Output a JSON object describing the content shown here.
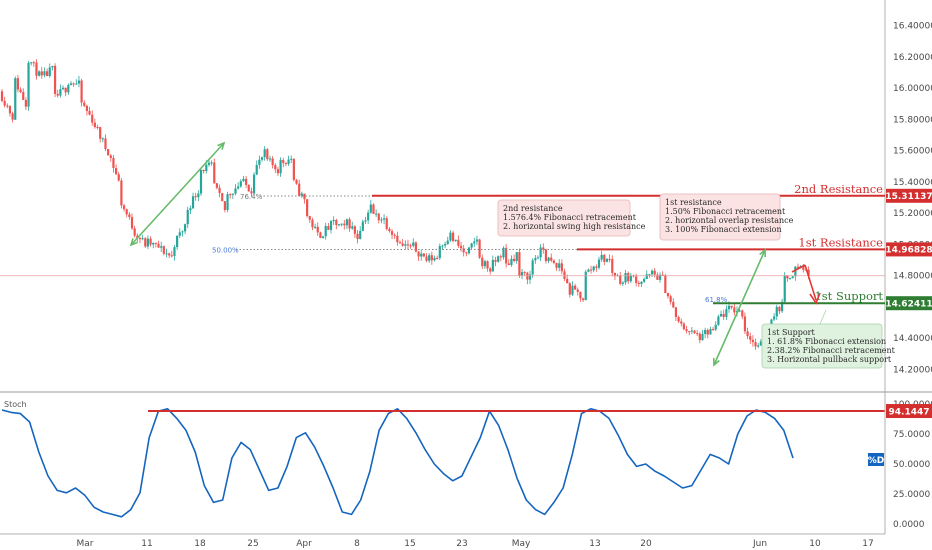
{
  "chart_data": [
    {
      "type": "candlestick",
      "ylim": [
        14.12,
        16.5
      ],
      "y_ticks": [
        "16.40000",
        "16.20000",
        "16.00000",
        "15.80000",
        "15.60000",
        "15.40000",
        "15.20000",
        "15.00000",
        "14.80000",
        "14.60000",
        "14.40000",
        "14.20000"
      ],
      "x_ticks": [
        "Mar",
        "11",
        "18",
        "25",
        "Apr",
        "8",
        "15",
        "23",
        "May",
        "13",
        "20",
        "Jun",
        "10",
        "17"
      ],
      "price_path": [
        [
          15.98,
          15.82
        ],
        [
          16.08,
          15.9
        ],
        [
          16.22,
          16.08
        ],
        [
          16.05,
          16.12
        ],
        [
          15.92,
          16.0
        ],
        [
          16.05,
          16.02
        ],
        [
          15.93,
          15.8
        ],
        [
          15.8,
          15.62
        ],
        [
          15.65,
          15.4
        ],
        [
          15.3,
          15.12
        ],
        [
          15.1,
          15.0
        ],
        [
          15.02,
          14.98
        ],
        [
          14.98,
          14.92
        ],
        [
          14.98,
          15.12
        ],
        [
          15.2,
          15.35
        ],
        [
          15.48,
          15.5
        ],
        [
          15.42,
          15.22
        ],
        [
          15.3,
          15.38
        ],
        [
          15.42,
          15.35
        ],
        [
          15.45,
          15.58
        ],
        [
          15.55,
          15.48
        ],
        [
          15.52,
          15.55
        ],
        [
          15.42,
          15.28
        ],
        [
          15.22,
          15.06
        ],
        [
          15.05,
          15.12
        ],
        [
          15.15,
          15.1
        ],
        [
          15.18,
          15.05
        ],
        [
          15.08,
          15.24
        ],
        [
          15.2,
          15.16
        ],
        [
          15.15,
          15.04
        ],
        [
          15.0,
          14.98
        ],
        [
          15.0,
          14.92
        ],
        [
          14.9,
          14.92
        ],
        [
          14.98,
          15.06
        ],
        [
          15.05,
          14.95
        ],
        [
          14.9,
          15.04
        ],
        [
          14.92,
          14.84
        ],
        [
          14.85,
          14.96
        ],
        [
          14.85,
          14.94
        ],
        [
          14.8,
          14.8
        ],
        [
          14.88,
          14.97
        ],
        [
          14.93,
          14.85
        ],
        [
          14.92,
          14.7
        ],
        [
          14.72,
          14.66
        ],
        [
          14.8,
          14.87
        ],
        [
          14.92,
          14.9
        ],
        [
          14.84,
          14.76
        ],
        [
          14.8,
          14.78
        ],
        [
          14.75,
          14.8
        ],
        [
          14.82,
          14.78
        ],
        [
          14.76,
          14.54
        ],
        [
          14.5,
          14.45
        ],
        [
          14.44,
          14.4
        ],
        [
          14.42,
          14.46
        ],
        [
          14.52,
          14.58
        ],
        [
          14.6,
          14.56
        ],
        [
          14.48,
          14.35
        ],
        [
          14.32,
          14.4
        ],
        [
          14.52,
          14.62
        ],
        [
          14.76,
          14.84
        ],
        [
          14.88,
          14.82
        ]
      ],
      "annotations": [
        "76.4%",
        "50.00%",
        "61.8%"
      ]
    },
    {
      "type": "line",
      "series": [
        {
          "name": "Stoch",
          "x_start": "Mar",
          "values": [
            95,
            93,
            92,
            85,
            60,
            40,
            28,
            26,
            30,
            24,
            14,
            10,
            8,
            6,
            12,
            26,
            72,
            94,
            96,
            88,
            78,
            60,
            32,
            18,
            20,
            55,
            68,
            62,
            45,
            28,
            30,
            48,
            72,
            76,
            64,
            48,
            30,
            10,
            8,
            20,
            44,
            78,
            92,
            96,
            88,
            76,
            62,
            50,
            42,
            36,
            40,
            56,
            72,
            94,
            82,
            62,
            38,
            20,
            12,
            8,
            18,
            30,
            58,
            92,
            96,
            94,
            88,
            74,
            58,
            48,
            50,
            44,
            40,
            35,
            30,
            32,
            45,
            58,
            55,
            50,
            75,
            90,
            95,
            93,
            88,
            78,
            55
          ]
        }
      ],
      "ylim": [
        0,
        105
      ],
      "y_ticks": [
        "100.0000",
        "75.0000",
        "50.0000",
        "25.0000",
        "0.0000"
      ]
    }
  ],
  "indicator": {
    "name": "Stoch",
    "overbought_tag": "94.1447",
    "value_tag": "%D"
  },
  "levels": {
    "second_resistance": {
      "label": "2nd Resistance",
      "value": "15.31137",
      "color": "#d32f2f"
    },
    "first_resistance": {
      "label": "1st Resistance",
      "value": "14.96828",
      "color": "#d32f2f"
    },
    "first_support": {
      "label": "1st Support",
      "value": "14.62411",
      "color": "#2e7d32"
    }
  },
  "notes": {
    "second_resistance": [
      "2nd resistance",
      "1.576.4% Fibonacci retracement",
      "2. horizontal swing high resistance"
    ],
    "first_resistance": [
      "1st resistance",
      "1.50% Fibonacci retracement",
      "2. horizontal overlap resistance",
      "3. 100% Fibonacci extension"
    ],
    "first_support": [
      "1st Support",
      "1. 61.8% Fibonacci extension",
      "2.38.2% Fibonacci retracement",
      "3. Horizontal pullback support"
    ]
  },
  "colors": {
    "up_candle": "#26a69a",
    "down_candle": "#ef5350",
    "stoch_line": "#1565c0",
    "resistance": "#d32f2f",
    "support": "#2e7d32",
    "arrow_green": "#66bb6a",
    "arrow_red": "#e53935",
    "grid_axis": "#b0b0b0"
  }
}
